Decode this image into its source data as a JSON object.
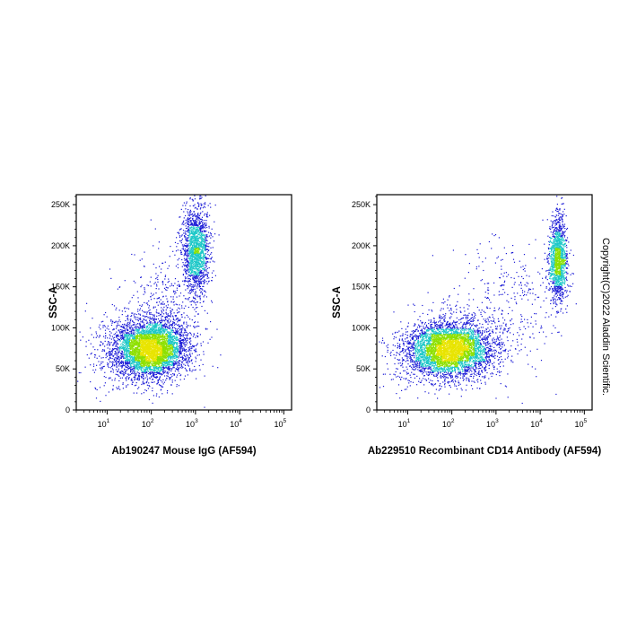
{
  "copyright": "Copyright(C)2022 Aladdin Scientific.",
  "colors": {
    "density_low": "#1a1ad6",
    "density_mid": "#1ec8c8",
    "density_high": "#8ee000",
    "density_peak": "#e8e400",
    "axis": "#000000"
  },
  "chart_data": [
    {
      "type": "scatter",
      "subtype": "flow-cytometry density dot plot",
      "xlabel": "Ab190247 Mouse IgG (AF594)",
      "ylabel": "SSC-A",
      "xscale": "log",
      "xlim": [
        2,
        150000
      ],
      "ylim": [
        0,
        262144
      ],
      "xticks": [
        {
          "base": "10",
          "exp": "1",
          "value": 10
        },
        {
          "base": "10",
          "exp": "2",
          "value": 100
        },
        {
          "base": "10",
          "exp": "3",
          "value": 1000
        },
        {
          "base": "10",
          "exp": "4",
          "value": 10000
        },
        {
          "base": "10",
          "exp": "5",
          "value": 100000
        }
      ],
      "yticks": [
        {
          "label": "0",
          "value": 0
        },
        {
          "label": "50K",
          "value": 50000
        },
        {
          "label": "100K",
          "value": 100000
        },
        {
          "label": "150K",
          "value": 150000
        },
        {
          "label": "200K",
          "value": 200000
        },
        {
          "label": "250K",
          "value": 250000
        }
      ],
      "populations": [
        {
          "center_x": 100,
          "center_y": 75000,
          "spread_log10_x": 0.4,
          "spread_y": 17000,
          "events": 4200
        },
        {
          "center_x": 1000,
          "center_y": 195000,
          "spread_log10_x": 0.15,
          "spread_y": 27000,
          "events": 1700
        },
        {
          "center_x": 200,
          "center_y": 115000,
          "spread_log10_x": 0.45,
          "spread_y": 40000,
          "events": 500
        },
        {
          "center_x": 30,
          "center_y": 70000,
          "spread_log10_x": 0.5,
          "spread_y": 22000,
          "events": 600
        }
      ]
    },
    {
      "type": "scatter",
      "subtype": "flow-cytometry density dot plot",
      "xlabel": "Ab229510 Recombinant CD14 Antibody (AF594)",
      "ylabel": "SSC-A",
      "xscale": "log",
      "xlim": [
        2,
        150000
      ],
      "ylim": [
        0,
        262144
      ],
      "xticks": [
        {
          "base": "10",
          "exp": "1",
          "value": 10
        },
        {
          "base": "10",
          "exp": "2",
          "value": 100
        },
        {
          "base": "10",
          "exp": "3",
          "value": 1000
        },
        {
          "base": "10",
          "exp": "4",
          "value": 10000
        },
        {
          "base": "10",
          "exp": "5",
          "value": 100000
        }
      ],
      "yticks": [
        {
          "label": "0",
          "value": 0
        },
        {
          "label": "50K",
          "value": 50000
        },
        {
          "label": "100K",
          "value": 100000
        },
        {
          "label": "150K",
          "value": 150000
        },
        {
          "label": "200K",
          "value": 200000
        },
        {
          "label": "250K",
          "value": 250000
        }
      ],
      "populations": [
        {
          "center_x": 100,
          "center_y": 75000,
          "spread_log10_x": 0.45,
          "spread_y": 17000,
          "events": 4200
        },
        {
          "center_x": 25000,
          "center_y": 185000,
          "spread_log10_x": 0.1,
          "spread_y": 25000,
          "events": 1400
        },
        {
          "center_x": 2000,
          "center_y": 130000,
          "spread_log10_x": 0.6,
          "spread_y": 40000,
          "events": 350
        },
        {
          "center_x": 25,
          "center_y": 70000,
          "spread_log10_x": 0.5,
          "spread_y": 20000,
          "events": 600
        }
      ]
    }
  ]
}
